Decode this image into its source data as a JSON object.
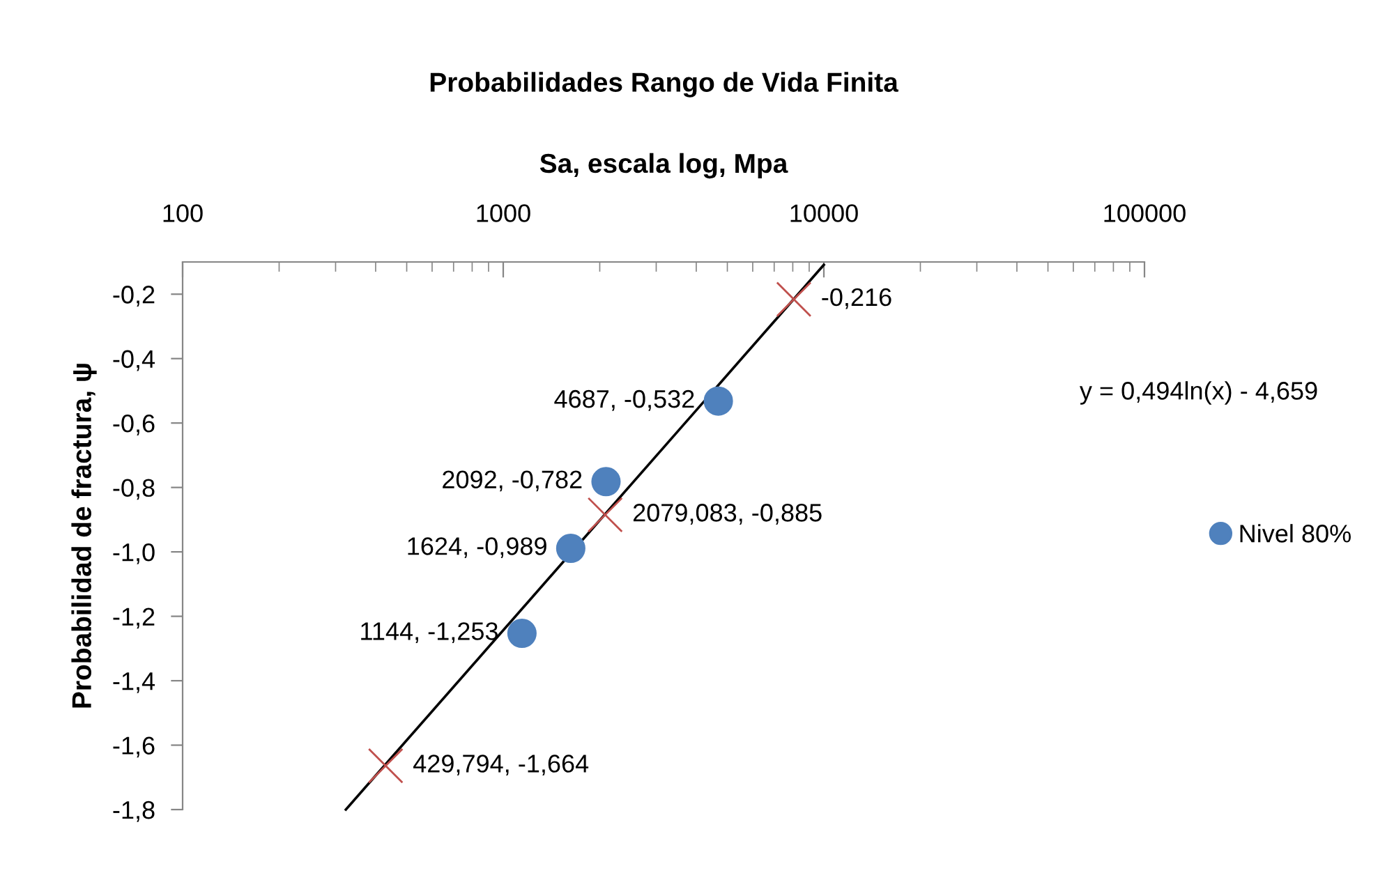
{
  "chart_data": {
    "type": "scatter",
    "title": "Probabilidades Rango de Vida Finita",
    "xlabel": "Sa, escala log, Mpa",
    "ylabel": "Probabilidad de fractura, ψ",
    "log": "x",
    "xlim": [
      100,
      100000
    ],
    "xticks": [
      100,
      1000,
      10000,
      100000
    ],
    "ylim": [
      -1.8,
      -0.1
    ],
    "yticks": [
      {
        "value": -0.2,
        "label": "-0,2"
      },
      {
        "value": -0.4,
        "label": "-0,4"
      },
      {
        "value": -0.6,
        "label": "-0,6"
      },
      {
        "value": -0.8,
        "label": "-0,8"
      },
      {
        "value": -1.0,
        "label": "-1,0"
      },
      {
        "value": -1.2,
        "label": "-1,2"
      },
      {
        "value": -1.4,
        "label": "-1,4"
      },
      {
        "value": -1.6,
        "label": "-1,6"
      },
      {
        "value": -1.8,
        "label": "-1,8"
      }
    ],
    "grid": false,
    "legend": "right",
    "annotations": [
      "y = 0,494ln(x) - 4,659"
    ],
    "series": [
      {
        "name": "Nivel 80%",
        "marker": "circle",
        "color": "#4f81bd",
        "x": [
          1144,
          1624,
          2092,
          4687
        ],
        "values": [
          -1.253,
          -0.989,
          -0.782,
          -0.532
        ],
        "value_labels": [
          "1144, -1,253",
          "1624, -0,989",
          "2092, -0,782",
          "4687, -0,532"
        ]
      },
      {
        "marker": "cross",
        "color": "#c0504d",
        "x": [
          8060,
          2079.083,
          429.794
        ],
        "values": [
          -0.216,
          -0.885,
          -1.664
        ],
        "value_labels": [
          "-0,216",
          "2079,083, -0,885",
          "429,794, -1,664"
        ]
      },
      {
        "type": "line",
        "line_style": "solid",
        "color": "#000000",
        "x": [
          323,
          10000
        ],
        "values": [
          -1.8,
          -0.109
        ]
      }
    ]
  }
}
